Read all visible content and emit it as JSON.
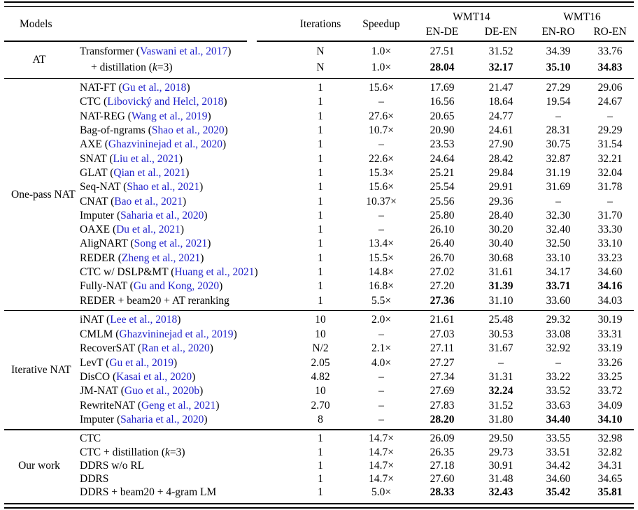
{
  "page": {
    "background": "#ffffff",
    "text_color": "#000000",
    "citation_color": "#2222cc"
  },
  "table": {
    "header": {
      "models": "Models",
      "iterations": "Iterations",
      "speedup": "Speedup",
      "wmt14": "WMT14",
      "wmt16": "WMT16",
      "col_en_de": "EN-DE",
      "col_de_en": "DE-EN",
      "col_en_ro": "EN-RO",
      "col_ro_en": "RO-EN"
    },
    "sections": [
      {
        "group": "AT",
        "rows": [
          {
            "model": "Transformer",
            "citation": "Vaswani et al., 2017",
            "indent": false,
            "iterations": "N",
            "speedup": "1.0×",
            "scores": [
              "27.51",
              "31.52",
              "34.39",
              "33.76"
            ],
            "bold": [
              0,
              0,
              0,
              0
            ]
          },
          {
            "model": "+ distillation (k=3)",
            "citation": null,
            "indent": true,
            "iterations": "N",
            "speedup": "1.0×",
            "scores": [
              "28.04",
              "32.17",
              "35.10",
              "34.83"
            ],
            "bold": [
              1,
              1,
              1,
              1
            ]
          }
        ]
      },
      {
        "group": "One-pass NAT",
        "rows": [
          {
            "model": "NAT-FT",
            "citation": "Gu et al., 2018",
            "iterations": "1",
            "speedup": "15.6×",
            "scores": [
              "17.69",
              "21.47",
              "27.29",
              "29.06"
            ],
            "bold": [
              0,
              0,
              0,
              0
            ]
          },
          {
            "model": "CTC",
            "citation": "Libovický and Helcl, 2018",
            "iterations": "1",
            "speedup": "–",
            "scores": [
              "16.56",
              "18.64",
              "19.54",
              "24.67"
            ],
            "bold": [
              0,
              0,
              0,
              0
            ]
          },
          {
            "model": "NAT-REG",
            "citation": "Wang et al., 2019",
            "iterations": "1",
            "speedup": "27.6×",
            "scores": [
              "20.65",
              "24.77",
              "–",
              "–"
            ],
            "bold": [
              0,
              0,
              0,
              0
            ]
          },
          {
            "model": "Bag-of-ngrams",
            "citation": "Shao et al., 2020",
            "iterations": "1",
            "speedup": "10.7×",
            "scores": [
              "20.90",
              "24.61",
              "28.31",
              "29.29"
            ],
            "bold": [
              0,
              0,
              0,
              0
            ]
          },
          {
            "model": "AXE",
            "citation": "Ghazvininejad et al., 2020",
            "iterations": "1",
            "speedup": "–",
            "scores": [
              "23.53",
              "27.90",
              "30.75",
              "31.54"
            ],
            "bold": [
              0,
              0,
              0,
              0
            ]
          },
          {
            "model": "SNAT",
            "citation": "Liu et al., 2021",
            "iterations": "1",
            "speedup": "22.6×",
            "scores": [
              "24.64",
              "28.42",
              "32.87",
              "32.21"
            ],
            "bold": [
              0,
              0,
              0,
              0
            ]
          },
          {
            "model": "GLAT",
            "citation": "Qian et al., 2021",
            "iterations": "1",
            "speedup": "15.3×",
            "scores": [
              "25.21",
              "29.84",
              "31.19",
              "32.04"
            ],
            "bold": [
              0,
              0,
              0,
              0
            ]
          },
          {
            "model": "Seq-NAT",
            "citation": "Shao et al., 2021",
            "iterations": "1",
            "speedup": "15.6×",
            "scores": [
              "25.54",
              "29.91",
              "31.69",
              "31.78"
            ],
            "bold": [
              0,
              0,
              0,
              0
            ]
          },
          {
            "model": "CNAT",
            "citation": "Bao et al., 2021",
            "iterations": "1",
            "speedup": "10.37×",
            "scores": [
              "25.56",
              "29.36",
              "–",
              "–"
            ],
            "bold": [
              0,
              0,
              0,
              0
            ]
          },
          {
            "model": "Imputer",
            "citation": "Saharia et al., 2020",
            "iterations": "1",
            "speedup": "–",
            "scores": [
              "25.80",
              "28.40",
              "32.30",
              "31.70"
            ],
            "bold": [
              0,
              0,
              0,
              0
            ]
          },
          {
            "model": "OAXE",
            "citation": "Du et al., 2021",
            "iterations": "1",
            "speedup": "–",
            "scores": [
              "26.10",
              "30.20",
              "32.40",
              "33.30"
            ],
            "bold": [
              0,
              0,
              0,
              0
            ]
          },
          {
            "model": "AligNART",
            "citation": "Song et al., 2021",
            "iterations": "1",
            "speedup": "13.4×",
            "scores": [
              "26.40",
              "30.40",
              "32.50",
              "33.10"
            ],
            "bold": [
              0,
              0,
              0,
              0
            ]
          },
          {
            "model": "REDER",
            "citation": "Zheng et al., 2021",
            "iterations": "1",
            "speedup": "15.5×",
            "scores": [
              "26.70",
              "30.68",
              "33.10",
              "33.23"
            ],
            "bold": [
              0,
              0,
              0,
              0
            ]
          },
          {
            "model": "CTC w/ DSLP&MT",
            "citation": "Huang et al., 2021",
            "iterations": "1",
            "speedup": "14.8×",
            "scores": [
              "27.02",
              "31.61",
              "34.17",
              "34.60"
            ],
            "bold": [
              0,
              0,
              0,
              0
            ]
          },
          {
            "model": "Fully-NAT",
            "citation": "Gu and Kong, 2020",
            "iterations": "1",
            "speedup": "16.8×",
            "scores": [
              "27.20",
              "31.39",
              "33.71",
              "34.16"
            ],
            "bold": [
              0,
              1,
              1,
              1
            ]
          },
          {
            "model": "REDER + beam20 + AT reranking",
            "citation": null,
            "iterations": "1",
            "speedup": "5.5×",
            "scores": [
              "27.36",
              "31.10",
              "33.60",
              "34.03"
            ],
            "bold": [
              1,
              0,
              0,
              0
            ]
          }
        ]
      },
      {
        "group": "Iterative NAT",
        "rows": [
          {
            "model": "iNAT",
            "citation": "Lee et al., 2018",
            "iterations": "10",
            "speedup": "2.0×",
            "scores": [
              "21.61",
              "25.48",
              "29.32",
              "30.19"
            ],
            "bold": [
              0,
              0,
              0,
              0
            ]
          },
          {
            "model": "CMLM",
            "citation": "Ghazvininejad et al., 2019",
            "iterations": "10",
            "speedup": "–",
            "scores": [
              "27.03",
              "30.53",
              "33.08",
              "33.31"
            ],
            "bold": [
              0,
              0,
              0,
              0
            ]
          },
          {
            "model": "RecoverSAT",
            "citation": "Ran et al., 2020",
            "iterations": "N/2",
            "speedup": "2.1×",
            "scores": [
              "27.11",
              "31.67",
              "32.92",
              "33.19"
            ],
            "bold": [
              0,
              0,
              0,
              0
            ]
          },
          {
            "model": "LevT",
            "citation": "Gu et al., 2019",
            "iterations": "2.05",
            "speedup": "4.0×",
            "scores": [
              "27.27",
              "–",
              "–",
              "33.26"
            ],
            "bold": [
              0,
              0,
              0,
              0
            ]
          },
          {
            "model": "DisCO",
            "citation": "Kasai et al., 2020",
            "iterations": "4.82",
            "speedup": "–",
            "scores": [
              "27.34",
              "31.31",
              "33.22",
              "33.25"
            ],
            "bold": [
              0,
              0,
              0,
              0
            ]
          },
          {
            "model": "JM-NAT",
            "citation": "Guo et al., 2020b",
            "iterations": "10",
            "speedup": "–",
            "scores": [
              "27.69",
              "32.24",
              "33.52",
              "33.72"
            ],
            "bold": [
              0,
              1,
              0,
              0
            ]
          },
          {
            "model": "RewriteNAT",
            "citation": "Geng et al., 2021",
            "iterations": "2.70",
            "speedup": "–",
            "scores": [
              "27.83",
              "31.52",
              "33.63",
              "34.09"
            ],
            "bold": [
              0,
              0,
              0,
              0
            ]
          },
          {
            "model": "Imputer",
            "citation": "Saharia et al., 2020",
            "iterations": "8",
            "speedup": "–",
            "scores": [
              "28.20",
              "31.80",
              "34.40",
              "34.10"
            ],
            "bold": [
              1,
              0,
              1,
              1
            ]
          }
        ]
      },
      {
        "group": "Our work",
        "rows": [
          {
            "model": "CTC",
            "citation": null,
            "iterations": "1",
            "speedup": "14.7×",
            "scores": [
              "26.09",
              "29.50",
              "33.55",
              "32.98"
            ],
            "bold": [
              0,
              0,
              0,
              0
            ]
          },
          {
            "model": "CTC + distillation (k=3)",
            "citation": null,
            "iterations": "1",
            "speedup": "14.7×",
            "scores": [
              "26.35",
              "29.73",
              "33.51",
              "32.82"
            ],
            "bold": [
              0,
              0,
              0,
              0
            ]
          },
          {
            "model": "DDRS w/o RL",
            "citation": null,
            "iterations": "1",
            "speedup": "14.7×",
            "scores": [
              "27.18",
              "30.91",
              "34.42",
              "34.31"
            ],
            "bold": [
              0,
              0,
              0,
              0
            ]
          },
          {
            "model": "DDRS",
            "citation": null,
            "iterations": "1",
            "speedup": "14.7×",
            "scores": [
              "27.60",
              "31.48",
              "34.60",
              "34.65"
            ],
            "bold": [
              0,
              0,
              0,
              0
            ]
          },
          {
            "model": "DDRS + beam20 + 4-gram LM",
            "citation": null,
            "iterations": "1",
            "speedup": "5.0×",
            "scores": [
              "28.33",
              "32.43",
              "35.42",
              "35.81"
            ],
            "bold": [
              1,
              1,
              1,
              1
            ]
          }
        ]
      }
    ]
  }
}
